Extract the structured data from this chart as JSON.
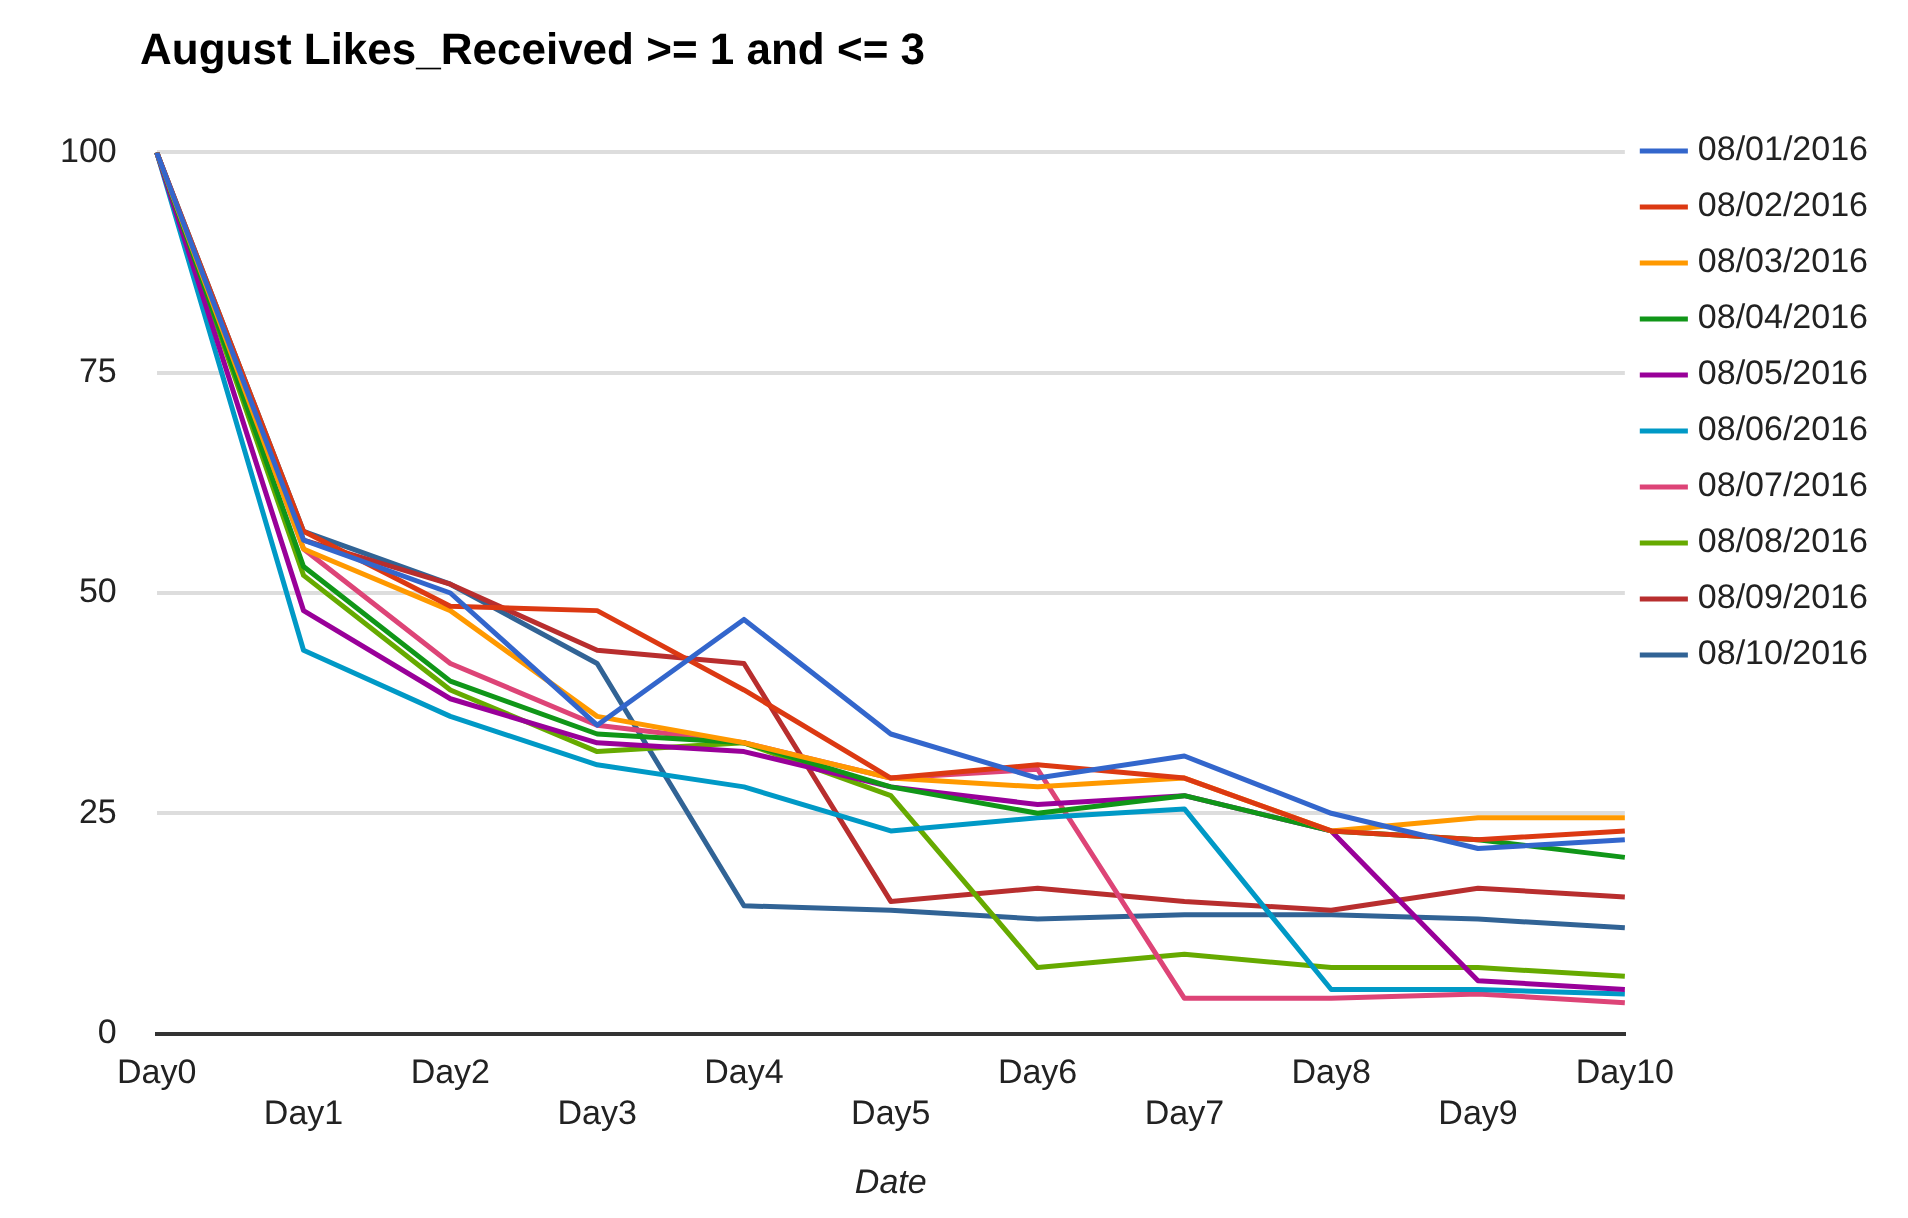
{
  "chart_data": {
    "type": "line",
    "title": "August Likes_Received >= 1 and <= 3",
    "xlabel": "Date",
    "categories": [
      "Day0",
      "Day1",
      "Day2",
      "Day3",
      "Day4",
      "Day5",
      "Day6",
      "Day7",
      "Day8",
      "Day9",
      "Day10"
    ],
    "series": [
      {
        "name": "08/01/2016",
        "color": "#3366cc",
        "values": [
          100,
          56,
          50,
          35,
          47,
          34,
          29,
          31.5,
          25,
          21,
          22
        ]
      },
      {
        "name": "08/02/2016",
        "color": "#dc3912",
        "values": [
          100,
          57,
          48.5,
          48,
          39,
          29,
          30.5,
          29,
          23,
          22,
          23
        ]
      },
      {
        "name": "08/03/2016",
        "color": "#ff9900",
        "values": [
          100,
          55,
          48,
          36,
          33,
          29,
          28,
          29,
          23,
          24.5,
          24.5
        ]
      },
      {
        "name": "08/04/2016",
        "color": "#109618",
        "values": [
          100,
          53,
          40,
          34,
          33,
          28,
          25,
          27,
          23,
          22,
          20
        ]
      },
      {
        "name": "08/05/2016",
        "color": "#990099",
        "values": [
          100,
          48,
          38,
          33,
          32,
          28,
          26,
          27,
          23,
          6,
          5
        ]
      },
      {
        "name": "08/06/2016",
        "color": "#0099c6",
        "values": [
          100,
          43.5,
          36,
          30.5,
          28,
          23,
          24.5,
          25.5,
          5,
          5,
          4.5
        ]
      },
      {
        "name": "08/07/2016",
        "color": "#dd4477",
        "values": [
          100,
          55,
          42,
          35,
          33,
          29,
          30,
          4,
          4,
          4.5,
          3.5
        ]
      },
      {
        "name": "08/08/2016",
        "color": "#66aa00",
        "values": [
          100,
          52,
          39,
          32,
          33,
          27,
          7.5,
          9,
          7.5,
          7.5,
          6.5
        ]
      },
      {
        "name": "08/09/2016",
        "color": "#b82e2e",
        "values": [
          100,
          56,
          51,
          43.5,
          42,
          15,
          16.5,
          15,
          14,
          16.5,
          15.5
        ]
      },
      {
        "name": "08/10/2016",
        "color": "#316395",
        "values": [
          100,
          57,
          51,
          42,
          14.5,
          14,
          13,
          13.5,
          13.5,
          13,
          12
        ]
      }
    ],
    "ylim": [
      0,
      100
    ],
    "yticks": [
      0,
      25,
      50,
      75,
      100
    ],
    "grid": "y",
    "legend": "right",
    "marker": "none",
    "line_style": "solid"
  }
}
